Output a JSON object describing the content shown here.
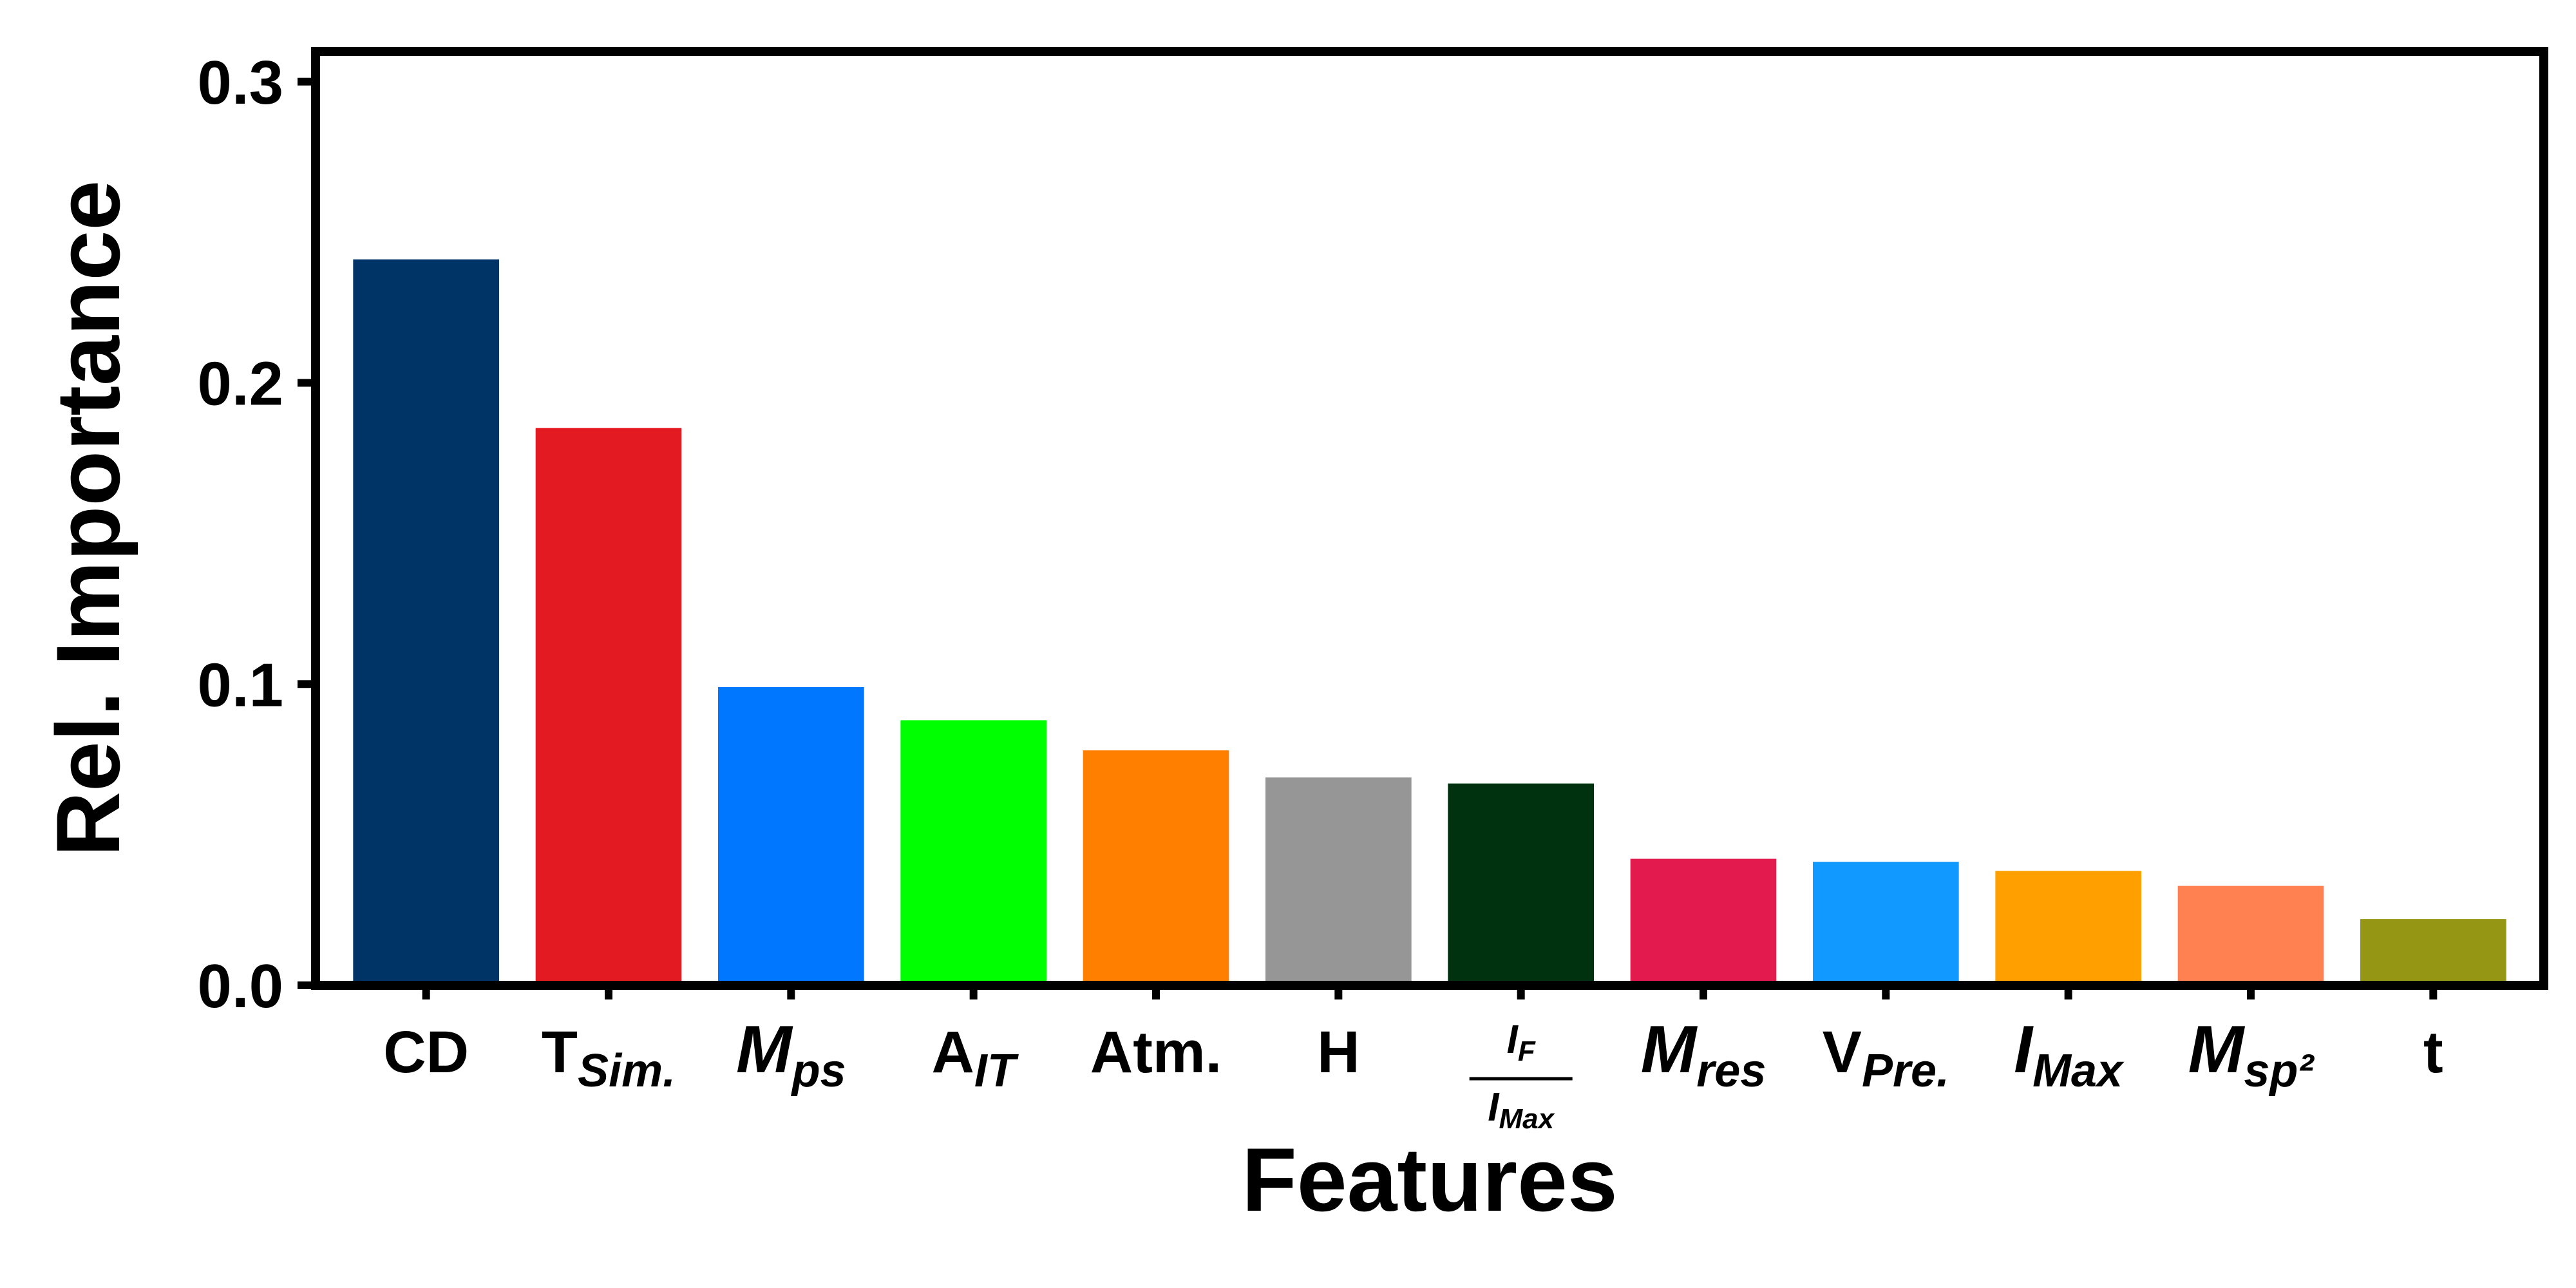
{
  "chart_data": {
    "type": "bar",
    "xlabel": "Features",
    "ylabel": "Rel. Importance",
    "ylim": [
      0,
      0.31
    ],
    "yticks": [
      "0.0",
      "0.1",
      "0.2",
      "0.3"
    ],
    "ytick_values": [
      0.0,
      0.1,
      0.2,
      0.3
    ],
    "grid": false,
    "legend": "none",
    "categories": [
      {
        "base": "CD",
        "sub": "",
        "italic": false
      },
      {
        "base": "T",
        "sub": "Sim.",
        "italic": false
      },
      {
        "base": "M",
        "sub": "ps",
        "italic": true
      },
      {
        "base": "A",
        "sub": "IT",
        "italic": false
      },
      {
        "base": "Atm.",
        "sub": "",
        "italic": false
      },
      {
        "base": "H",
        "sub": "",
        "italic": false
      },
      {
        "base": "I_F/I_Max",
        "sub": "",
        "italic": true,
        "fraction": {
          "num_base": "I",
          "num_sub": "F",
          "den_base": "I",
          "den_sub": "Max"
        }
      },
      {
        "base": "M",
        "sub": "res",
        "italic": true
      },
      {
        "base": "V",
        "sub": "Pre.",
        "italic": false
      },
      {
        "base": "I",
        "sub": "Max",
        "italic": true
      },
      {
        "base": "M",
        "sub": "sp²",
        "italic": true
      },
      {
        "base": "t",
        "sub": "",
        "italic": false
      }
    ],
    "values": [
      0.241,
      0.185,
      0.099,
      0.088,
      0.078,
      0.069,
      0.067,
      0.042,
      0.041,
      0.038,
      0.033,
      0.022
    ],
    "colors": [
      "#003366",
      "#e31a22",
      "#0077ff",
      "#00ff00",
      "#ff7f00",
      "#969696",
      "#00320f",
      "#e31a4e",
      "#1199ff",
      "#ffa000",
      "#ff8050",
      "#969615"
    ]
  }
}
